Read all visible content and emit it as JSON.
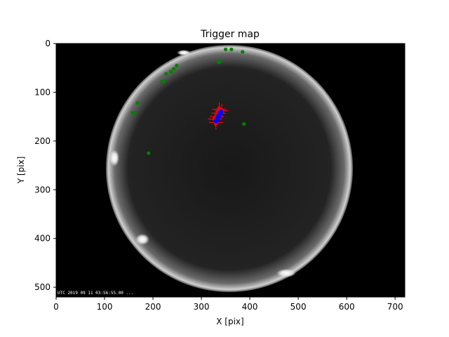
{
  "chart_data": {
    "type": "scatter",
    "title": "Trigger map",
    "xlabel": "X [pix]",
    "ylabel": "Y [pix]",
    "xlim": [
      0,
      720
    ],
    "ylim": [
      520,
      0
    ],
    "xticks": [
      0,
      100,
      200,
      300,
      400,
      500,
      600,
      700
    ],
    "yticks": [
      0,
      100,
      200,
      300,
      400,
      500
    ],
    "grid": false,
    "legend": "none",
    "background_image": "all-sky camera frame (fisheye, night sky)",
    "timestamp_overlay": "UTC 2019 09 11 03:56:55.00 ...",
    "series": [
      {
        "marker": "green-dot",
        "color": "#008000",
        "points": [
          {
            "x": 350,
            "y": 12
          },
          {
            "x": 362,
            "y": 12
          },
          {
            "x": 385,
            "y": 17
          },
          {
            "x": 335,
            "y": 38
          },
          {
            "x": 338,
            "y": 38
          },
          {
            "x": 249,
            "y": 45
          },
          {
            "x": 243,
            "y": 52
          },
          {
            "x": 237,
            "y": 58
          },
          {
            "x": 227,
            "y": 62
          },
          {
            "x": 219,
            "y": 78
          },
          {
            "x": 222,
            "y": 78
          },
          {
            "x": 168,
            "y": 122
          },
          {
            "x": 158,
            "y": 142
          },
          {
            "x": 162,
            "y": 142
          },
          {
            "x": 388,
            "y": 165
          },
          {
            "x": 191,
            "y": 225
          }
        ]
      },
      {
        "marker": "red-plus",
        "color": "#ff0000",
        "points": [
          {
            "x": 337,
            "y": 135
          },
          {
            "x": 342,
            "y": 138
          },
          {
            "x": 335,
            "y": 143
          },
          {
            "x": 332,
            "y": 150
          },
          {
            "x": 328,
            "y": 155
          },
          {
            "x": 330,
            "y": 162
          }
        ]
      },
      {
        "marker": "blue-dot",
        "color": "#0000ff",
        "points": [
          {
            "x": 340,
            "y": 140
          },
          {
            "x": 338,
            "y": 144
          },
          {
            "x": 336,
            "y": 148
          },
          {
            "x": 334,
            "y": 152
          },
          {
            "x": 332,
            "y": 156
          },
          {
            "x": 330,
            "y": 159
          }
        ]
      }
    ]
  },
  "colors": {
    "frame": "#000000",
    "sky_glow": "#bdbdbd",
    "sky_dark": "#1a1a1a"
  }
}
